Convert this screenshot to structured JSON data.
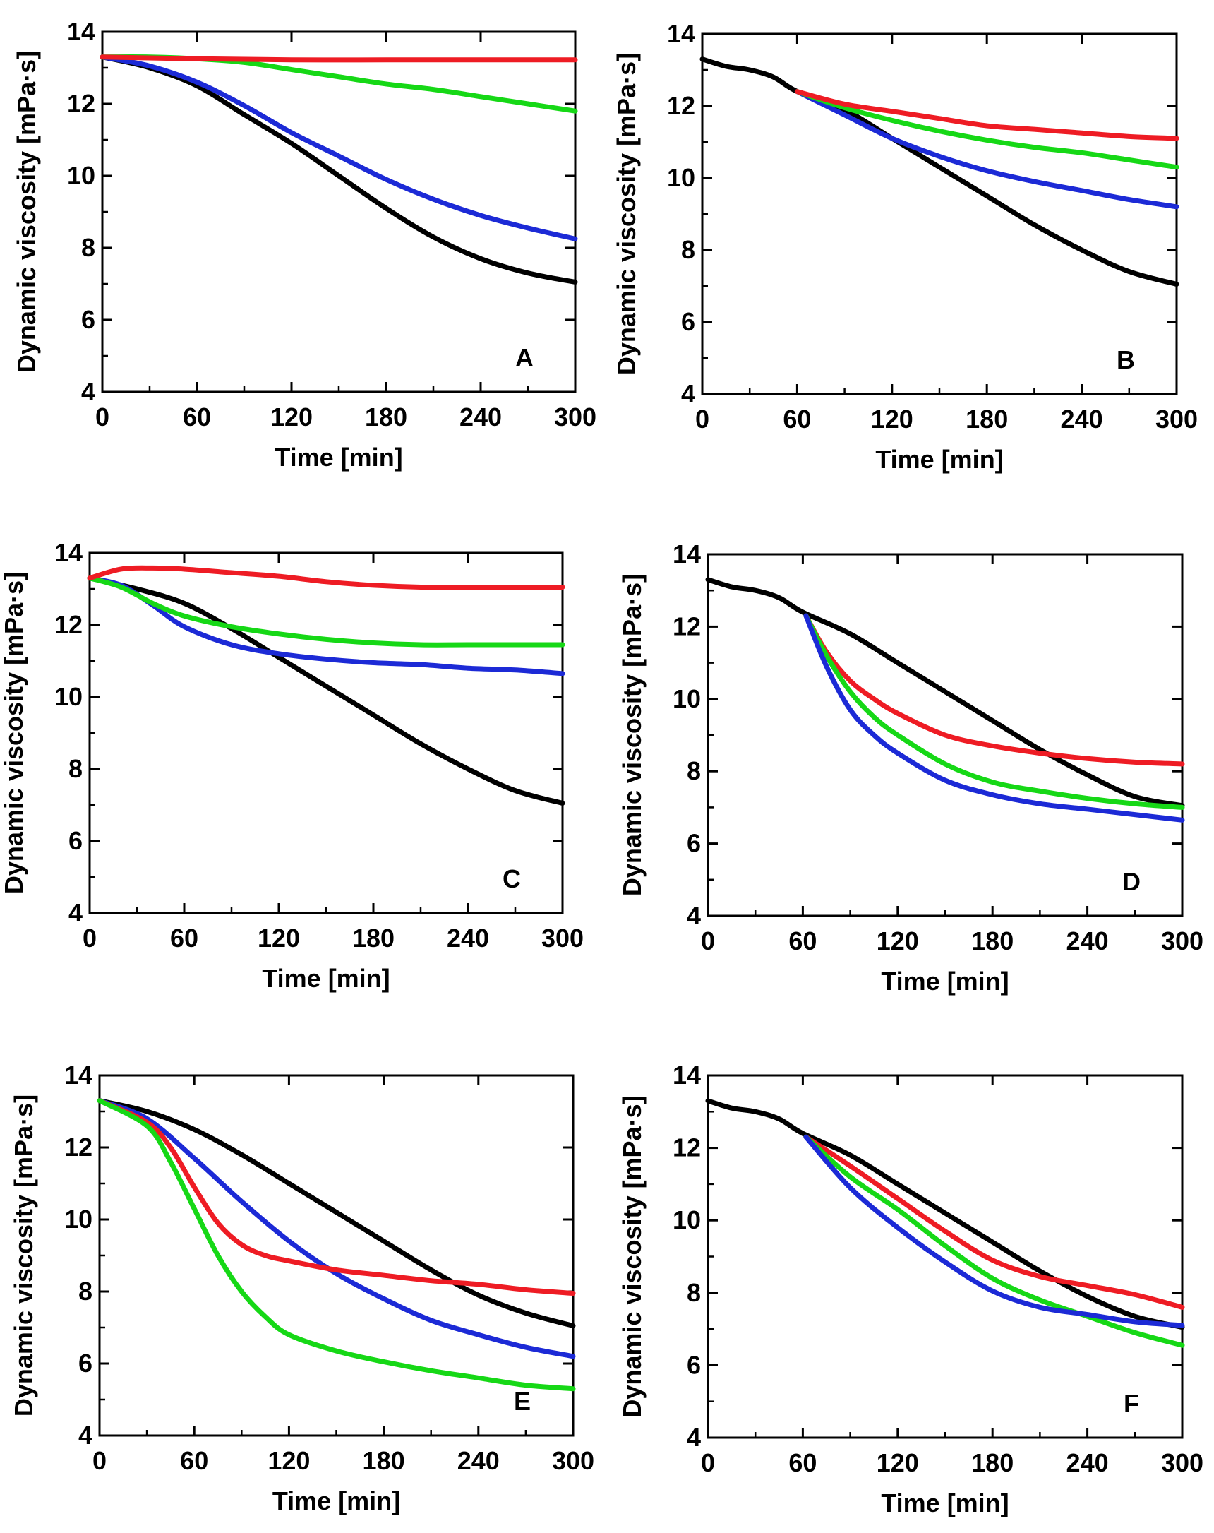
{
  "colors": {
    "red": "#ee1c24",
    "green": "#16d816",
    "blue": "#1c2ad6",
    "black": "#000000"
  },
  "chart_data": [
    {
      "panel": "A",
      "type": "line",
      "xlabel": "Time [min]",
      "ylabel": "Dynamic viscosity [mPa·s]",
      "xlim": [
        0,
        300
      ],
      "ylim": [
        4,
        14
      ],
      "xticks": [
        0,
        60,
        120,
        180,
        240,
        300
      ],
      "yticks": [
        4,
        6,
        8,
        10,
        12,
        14
      ],
      "series": [
        {
          "name": "black",
          "color": "#000000",
          "x": [
            0,
            30,
            60,
            90,
            120,
            150,
            180,
            210,
            240,
            270,
            300
          ],
          "y": [
            13.3,
            13.0,
            12.5,
            11.7,
            10.9,
            10.0,
            9.1,
            8.3,
            7.7,
            7.3,
            7.05
          ]
        },
        {
          "name": "blue",
          "color": "#1c2ad6",
          "x": [
            0,
            30,
            60,
            90,
            120,
            150,
            180,
            210,
            240,
            270,
            300
          ],
          "y": [
            13.3,
            13.05,
            12.6,
            11.95,
            11.2,
            10.55,
            9.9,
            9.35,
            8.9,
            8.55,
            8.25
          ]
        },
        {
          "name": "green",
          "color": "#16d816",
          "x": [
            0,
            30,
            60,
            90,
            120,
            150,
            180,
            210,
            240,
            270,
            300
          ],
          "y": [
            13.3,
            13.3,
            13.25,
            13.15,
            12.95,
            12.75,
            12.55,
            12.4,
            12.2,
            12.0,
            11.8
          ]
        },
        {
          "name": "red",
          "color": "#ee1c24",
          "x": [
            0,
            60,
            120,
            180,
            240,
            300
          ],
          "y": [
            13.3,
            13.25,
            13.22,
            13.22,
            13.22,
            13.22
          ]
        }
      ]
    },
    {
      "panel": "B",
      "type": "line",
      "xlabel": "Time [min]",
      "ylabel": "Dynamic viscosity [mPa·s]",
      "xlim": [
        0,
        300
      ],
      "ylim": [
        4,
        14
      ],
      "xticks": [
        0,
        60,
        120,
        180,
        240,
        300
      ],
      "yticks": [
        4,
        6,
        8,
        10,
        12,
        14
      ],
      "series": [
        {
          "name": "black",
          "color": "#000000",
          "x": [
            0,
            15,
            30,
            45,
            60,
            90,
            120,
            150,
            180,
            210,
            240,
            270,
            300
          ],
          "y": [
            13.3,
            13.1,
            13.0,
            12.8,
            12.4,
            11.9,
            11.1,
            10.3,
            9.5,
            8.7,
            8.0,
            7.4,
            7.05
          ]
        },
        {
          "name": "blue",
          "color": "#1c2ad6",
          "x": [
            60,
            90,
            120,
            150,
            180,
            210,
            240,
            270,
            300
          ],
          "y": [
            12.4,
            11.75,
            11.1,
            10.6,
            10.2,
            9.9,
            9.65,
            9.4,
            9.2
          ]
        },
        {
          "name": "green",
          "color": "#16d816",
          "x": [
            60,
            90,
            120,
            150,
            180,
            210,
            240,
            270,
            300
          ],
          "y": [
            12.4,
            11.95,
            11.6,
            11.3,
            11.05,
            10.85,
            10.7,
            10.5,
            10.3
          ]
        },
        {
          "name": "red",
          "color": "#ee1c24",
          "x": [
            60,
            90,
            120,
            150,
            180,
            210,
            240,
            270,
            300
          ],
          "y": [
            12.4,
            12.05,
            11.85,
            11.65,
            11.45,
            11.35,
            11.25,
            11.15,
            11.1
          ]
        }
      ]
    },
    {
      "panel": "C",
      "type": "line",
      "xlabel": "Time [min]",
      "ylabel": "Dynamic viscosity [mPa·s]",
      "xlim": [
        0,
        300
      ],
      "ylim": [
        4,
        14
      ],
      "xticks": [
        0,
        60,
        120,
        180,
        240,
        300
      ],
      "yticks": [
        4,
        6,
        8,
        10,
        12,
        14
      ],
      "series": [
        {
          "name": "black",
          "color": "#000000",
          "x": [
            0,
            30,
            60,
            90,
            120,
            150,
            180,
            210,
            240,
            270,
            300
          ],
          "y": [
            13.3,
            13.0,
            12.6,
            11.9,
            11.1,
            10.3,
            9.5,
            8.7,
            8.0,
            7.4,
            7.05
          ]
        },
        {
          "name": "blue",
          "color": "#1c2ad6",
          "x": [
            0,
            20,
            40,
            60,
            90,
            120,
            150,
            180,
            210,
            240,
            270,
            300
          ],
          "y": [
            13.3,
            13.1,
            12.55,
            11.95,
            11.45,
            11.2,
            11.05,
            10.95,
            10.9,
            10.8,
            10.75,
            10.65
          ]
        },
        {
          "name": "green",
          "color": "#16d816",
          "x": [
            0,
            20,
            40,
            60,
            90,
            120,
            150,
            180,
            210,
            240,
            270,
            300
          ],
          "y": [
            13.3,
            13.05,
            12.6,
            12.25,
            11.95,
            11.75,
            11.6,
            11.5,
            11.45,
            11.45,
            11.45,
            11.45
          ]
        },
        {
          "name": "red",
          "color": "#ee1c24",
          "x": [
            0,
            20,
            40,
            60,
            90,
            120,
            150,
            180,
            210,
            240,
            270,
            300
          ],
          "y": [
            13.3,
            13.55,
            13.58,
            13.55,
            13.45,
            13.35,
            13.2,
            13.1,
            13.05,
            13.05,
            13.05,
            13.05
          ]
        }
      ]
    },
    {
      "panel": "D",
      "type": "line",
      "xlabel": "Time [min]",
      "ylabel": "Dynamic viscosity [mPa·s]",
      "xlim": [
        0,
        300
      ],
      "ylim": [
        4,
        14
      ],
      "xticks": [
        0,
        60,
        120,
        180,
        240,
        300
      ],
      "yticks": [
        4,
        6,
        8,
        10,
        12,
        14
      ],
      "series": [
        {
          "name": "black",
          "color": "#000000",
          "x": [
            0,
            15,
            30,
            45,
            60,
            90,
            120,
            150,
            180,
            210,
            240,
            270,
            300
          ],
          "y": [
            13.3,
            13.1,
            13.0,
            12.8,
            12.4,
            11.8,
            11.0,
            10.2,
            9.4,
            8.6,
            7.9,
            7.3,
            7.05
          ]
        },
        {
          "name": "red",
          "color": "#ee1c24",
          "x": [
            62,
            75,
            90,
            105,
            120,
            150,
            180,
            210,
            240,
            270,
            300
          ],
          "y": [
            12.3,
            11.3,
            10.5,
            10.0,
            9.6,
            9.0,
            8.7,
            8.5,
            8.35,
            8.25,
            8.2
          ]
        },
        {
          "name": "green",
          "color": "#16d816",
          "x": [
            62,
            75,
            90,
            105,
            120,
            150,
            180,
            210,
            240,
            270,
            300
          ],
          "y": [
            12.3,
            11.2,
            10.2,
            9.5,
            9.0,
            8.2,
            7.7,
            7.45,
            7.25,
            7.1,
            7.0
          ]
        },
        {
          "name": "blue",
          "color": "#1c2ad6",
          "x": [
            62,
            75,
            90,
            105,
            120,
            150,
            180,
            210,
            240,
            270,
            300
          ],
          "y": [
            12.3,
            10.9,
            9.7,
            9.0,
            8.5,
            7.75,
            7.35,
            7.1,
            6.95,
            6.8,
            6.65
          ]
        }
      ]
    },
    {
      "panel": "E",
      "type": "line",
      "xlabel": "Time [min]",
      "ylabel": "Dynamic viscosity [mPa·s]",
      "xlim": [
        0,
        300
      ],
      "ylim": [
        4,
        14
      ],
      "xticks": [
        0,
        60,
        120,
        180,
        240,
        300
      ],
      "yticks": [
        4,
        6,
        8,
        10,
        12,
        14
      ],
      "series": [
        {
          "name": "black",
          "color": "#000000",
          "x": [
            0,
            30,
            60,
            90,
            120,
            150,
            180,
            210,
            240,
            270,
            300
          ],
          "y": [
            13.3,
            13.0,
            12.5,
            11.8,
            11.0,
            10.2,
            9.4,
            8.6,
            7.9,
            7.4,
            7.05
          ]
        },
        {
          "name": "blue",
          "color": "#1c2ad6",
          "x": [
            0,
            30,
            60,
            90,
            120,
            150,
            180,
            210,
            240,
            270,
            300
          ],
          "y": [
            13.3,
            12.8,
            11.7,
            10.5,
            9.4,
            8.5,
            7.8,
            7.2,
            6.8,
            6.45,
            6.2
          ]
        },
        {
          "name": "red",
          "color": "#ee1c24",
          "x": [
            0,
            30,
            45,
            60,
            75,
            90,
            105,
            120,
            150,
            180,
            210,
            240,
            270,
            300
          ],
          "y": [
            13.3,
            12.7,
            12.0,
            10.9,
            9.9,
            9.3,
            9.0,
            8.85,
            8.6,
            8.45,
            8.3,
            8.2,
            8.05,
            7.95
          ]
        },
        {
          "name": "green",
          "color": "#16d816",
          "x": [
            0,
            30,
            45,
            60,
            75,
            90,
            105,
            120,
            150,
            180,
            210,
            240,
            270,
            300
          ],
          "y": [
            13.3,
            12.6,
            11.6,
            10.3,
            9.0,
            8.0,
            7.3,
            6.8,
            6.35,
            6.05,
            5.8,
            5.6,
            5.4,
            5.3
          ]
        }
      ]
    },
    {
      "panel": "F",
      "type": "line",
      "xlabel": "Time [min]",
      "ylabel": "Dynamic viscosity [mPa·s]",
      "xlim": [
        0,
        300
      ],
      "ylim": [
        4,
        14
      ],
      "xticks": [
        0,
        60,
        120,
        180,
        240,
        300
      ],
      "yticks": [
        4,
        6,
        8,
        10,
        12,
        14
      ],
      "series": [
        {
          "name": "black",
          "color": "#000000",
          "x": [
            0,
            15,
            30,
            45,
            60,
            90,
            120,
            150,
            180,
            210,
            240,
            270,
            300
          ],
          "y": [
            13.3,
            13.1,
            13.0,
            12.8,
            12.4,
            11.8,
            11.0,
            10.2,
            9.4,
            8.6,
            7.9,
            7.35,
            7.05
          ]
        },
        {
          "name": "red",
          "color": "#ee1c24",
          "x": [
            62,
            90,
            120,
            150,
            180,
            210,
            240,
            270,
            300
          ],
          "y": [
            12.3,
            11.5,
            10.6,
            9.7,
            8.9,
            8.45,
            8.2,
            7.95,
            7.6
          ]
        },
        {
          "name": "green",
          "color": "#16d816",
          "x": [
            62,
            90,
            120,
            150,
            180,
            210,
            240,
            270,
            300
          ],
          "y": [
            12.3,
            11.2,
            10.3,
            9.3,
            8.4,
            7.8,
            7.35,
            6.9,
            6.55
          ]
        },
        {
          "name": "blue",
          "color": "#1c2ad6",
          "x": [
            62,
            90,
            120,
            150,
            180,
            210,
            240,
            270,
            300
          ],
          "y": [
            12.3,
            10.9,
            9.8,
            8.85,
            8.05,
            7.6,
            7.4,
            7.2,
            7.1
          ]
        }
      ]
    }
  ]
}
